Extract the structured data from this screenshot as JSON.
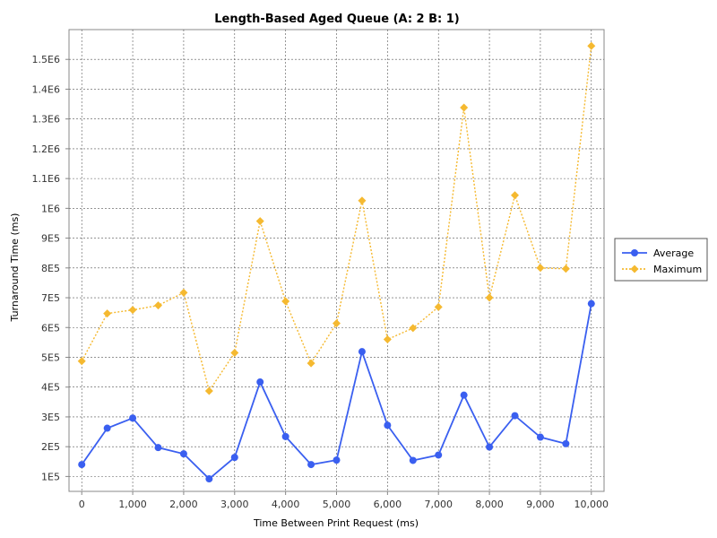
{
  "chart_data": {
    "type": "line",
    "title": "Length-Based Aged Queue (A: 2 B: 1)",
    "xlabel": "Time Between Print Request (ms)",
    "ylabel": "Turnaround Time (ms)",
    "xlim": [
      -250,
      10250
    ],
    "ylim": [
      50000,
      1600000
    ],
    "x_ticks": [
      0,
      1000,
      2000,
      3000,
      4000,
      5000,
      6000,
      7000,
      8000,
      9000,
      10000
    ],
    "x_tick_labels": [
      "0",
      "1,000",
      "2,000",
      "3,000",
      "4,000",
      "5,000",
      "6,000",
      "7,000",
      "8,000",
      "9,000",
      "10,000"
    ],
    "y_ticks": [
      100000,
      200000,
      300000,
      400000,
      500000,
      600000,
      700000,
      800000,
      900000,
      1000000,
      1100000,
      1200000,
      1300000,
      1400000,
      1500000
    ],
    "y_tick_labels": [
      "1E5",
      "2E5",
      "3E5",
      "4E5",
      "5E5",
      "6E5",
      "7E5",
      "8E5",
      "9E5",
      "1E6",
      "1.1E6",
      "1.2E6",
      "1.3E6",
      "1.4E6",
      "1.5E6"
    ],
    "grid": true,
    "legend_position": "right",
    "x": [
      0,
      500,
      1000,
      1500,
      2000,
      2500,
      3000,
      3500,
      4000,
      4500,
      5000,
      5500,
      6000,
      6500,
      7000,
      7500,
      8000,
      8500,
      9000,
      9500,
      10000
    ],
    "series": [
      {
        "name": "Average",
        "color": "#3a5ff0",
        "marker": "circle",
        "line_style": "solid",
        "values": [
          140000,
          262000,
          296000,
          197000,
          176000,
          92000,
          164000,
          417000,
          234000,
          140000,
          155000,
          519000,
          272000,
          154000,
          172000,
          373000,
          199000,
          304000,
          232000,
          210000,
          680000
        ]
      },
      {
        "name": "Maximum",
        "color": "#f5b930",
        "marker": "diamond",
        "line_style": "dotted",
        "values": [
          487000,
          647000,
          659000,
          674000,
          717000,
          387000,
          515000,
          957000,
          688000,
          480000,
          614000,
          1026000,
          560000,
          598000,
          669000,
          1338000,
          700000,
          1044000,
          800000,
          797000,
          1545000
        ]
      }
    ]
  }
}
